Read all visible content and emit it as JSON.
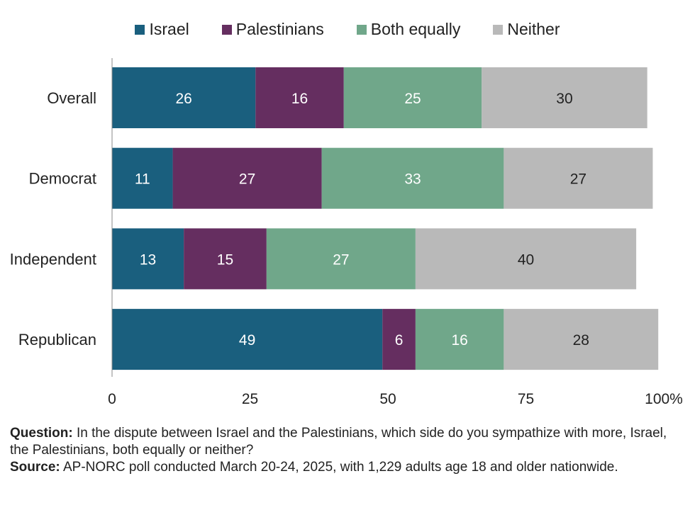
{
  "chart_data": {
    "type": "bar",
    "orientation": "horizontal",
    "stacked": true,
    "categories": [
      "Overall",
      "Democrat",
      "Independent",
      "Republican"
    ],
    "series": [
      {
        "name": "Israel",
        "color": "#1a5f7e",
        "values": [
          26,
          11,
          13,
          49
        ]
      },
      {
        "name": "Palestinians",
        "color": "#652e60",
        "values": [
          16,
          27,
          15,
          6
        ]
      },
      {
        "name": "Both equally",
        "color": "#70a78a",
        "values": [
          25,
          33,
          27,
          16
        ]
      },
      {
        "name": "Neither",
        "color": "#b9b9b9",
        "values": [
          30,
          27,
          40,
          28
        ]
      }
    ],
    "label_colors": [
      "#ffffff",
      "#ffffff",
      "#ffffff",
      "#222222"
    ],
    "xlim": [
      0,
      100
    ],
    "xticks": [
      "0",
      "25",
      "50",
      "75",
      "100%"
    ],
    "xtick_values": [
      0,
      25,
      50,
      75,
      100
    ],
    "legend_position": "top",
    "grid": false
  },
  "notes": {
    "question_label": "Question:",
    "question_text": " In the dispute between Israel and the Palestinians, which side do you sympathize with more, Israel, the Palestinians, both equally or neither?",
    "source_label": "Source:",
    "source_text": " AP-NORC poll conducted March 20-24, 2025, with 1,229 adults age 18 and older nationwide."
  }
}
